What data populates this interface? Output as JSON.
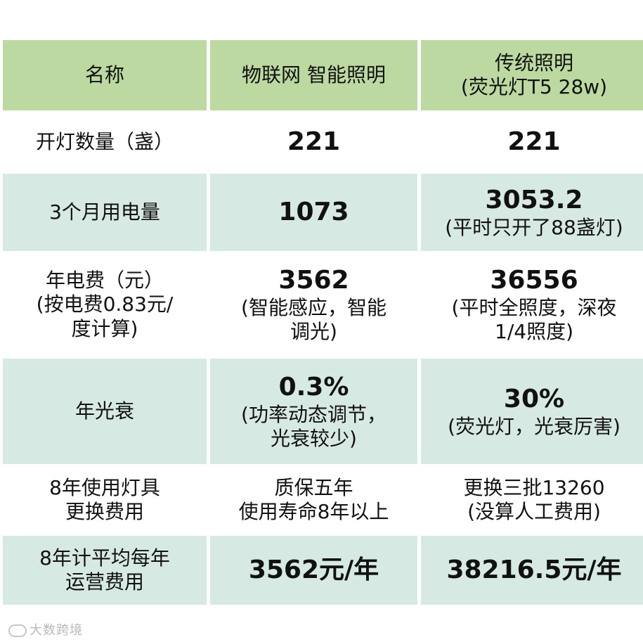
{
  "header": {
    "col1": "名称",
    "col2": "物联网 智能照明",
    "col3_line1": "传统照明",
    "col3_line2": "(荧光灯T5 28w)"
  },
  "rows": [
    {
      "label": [
        "开灯数量（盏）"
      ],
      "iot_main": "221",
      "iot_note": [],
      "trad_main": "221",
      "trad_note": []
    },
    {
      "label": [
        "3个月用电量"
      ],
      "iot_main": "1073",
      "iot_note": [],
      "trad_main": "3053.2",
      "trad_note": [
        "(平时只开了88盏灯)"
      ]
    },
    {
      "label": [
        "年电费（元）",
        "(按电费0.83元/",
        "度计算)"
      ],
      "iot_main": "3562",
      "iot_note": [
        "(智能感应，智能",
        "调光)"
      ],
      "trad_main": "36556",
      "trad_note": [
        "(平时全照度，深夜",
        "1/4照度)"
      ]
    },
    {
      "label": [
        "年光衰"
      ],
      "iot_main": "0.3%",
      "iot_note": [
        "(功率动态调节，",
        "光衰较少)"
      ],
      "trad_main": "30%",
      "trad_note": [
        "(荧光灯，光衰厉害)"
      ]
    },
    {
      "label": [
        "8年使用灯具",
        "更换费用"
      ],
      "iot_main": "",
      "iot_note": [
        "质保五年",
        "使用寿命8年以上"
      ],
      "trad_main": "",
      "trad_note": [
        "更换三批13260",
        "(没算人工费用)"
      ]
    },
    {
      "label": [
        "8年计平均每年",
        "运营费用"
      ],
      "iot_main": "3562元/年",
      "iot_note": [],
      "trad_main": "38216.5元/年",
      "trad_note": []
    }
  ],
  "watermark": "大数跨境",
  "colors": {
    "header_bg": "#bcd9a2",
    "teal_row_bg": "#d6e9e2",
    "white_row_bg": "#ffffff"
  }
}
